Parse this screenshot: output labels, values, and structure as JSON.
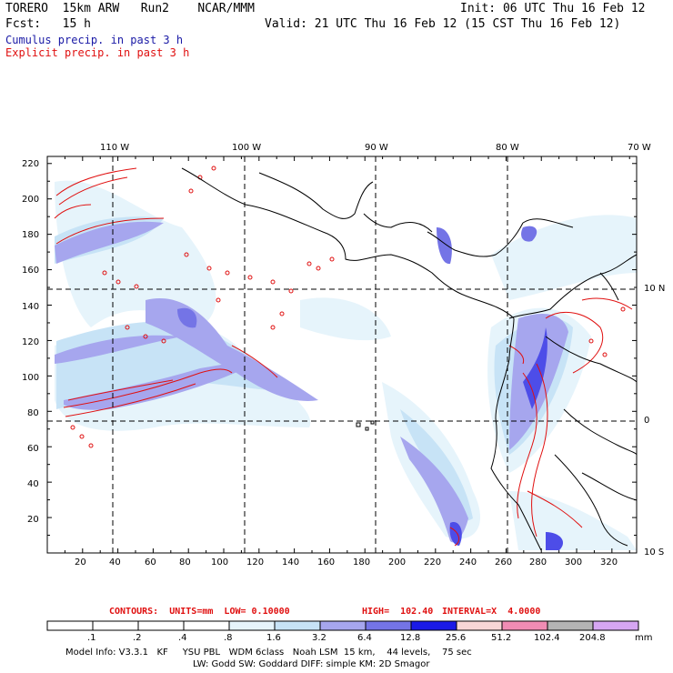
{
  "header": {
    "left1": "TORERO  15km ARW   Run2    NCAR/MMM",
    "left2": "Fcst:   15 h",
    "right1": "Init: 06 UTC Thu 16 Feb 12",
    "right2": "Valid: 21 UTC Thu 16 Feb 12 (15 CST Thu 16 Feb 12)",
    "legend_cumulus": "Cumulus precip. in past 3 h",
    "legend_explicit": "Explicit precip. in past 3 h"
  },
  "axes": {
    "top_lon_labels": [
      "110 W",
      "100 W",
      "90 W",
      "80 W",
      "70 W"
    ],
    "right_lat_labels": [
      "10 N",
      "0",
      "10 S"
    ],
    "left_y_labels": [
      "220",
      "200",
      "180",
      "160",
      "140",
      "120",
      "100",
      "80",
      "60",
      "40",
      "20"
    ],
    "bottom_x_labels": [
      "20",
      "40",
      "60",
      "80",
      "100",
      "120",
      "140",
      "160",
      "180",
      "200",
      "220",
      "240",
      "260",
      "280",
      "300",
      "320"
    ]
  },
  "contour_info": {
    "units": "CONTOURS:  UNITS=mm  LOW= 0.10000",
    "high": "HIGH=  102.40",
    "interval": "INTERVAL=X  4.0000"
  },
  "colorbar": {
    "colors": [
      "#ffffff",
      "#ffffff",
      "#ffffff",
      "#ffffff",
      "#e6f4fb",
      "#c7e3f6",
      "#a6a6ee",
      "#7474e6",
      "#4d4de8",
      "#1a1ae6",
      "#f7d6d6",
      "#f08cb4",
      "#b4b4b4",
      "#787878",
      "#d6a6f2"
    ],
    "labels": [
      ".1",
      ".2",
      ".4",
      ".8",
      "1.6",
      "3.2",
      "6.4",
      "12.8",
      "25.6",
      "51.2",
      "102.4",
      "204.8"
    ],
    "unit": "mm"
  },
  "model_info": {
    "line1": "Model Info: V3.3.1   KF     YSU PBL   WDM 6class   Noah LSM  15 km,    44 levels,    75 sec",
    "line2": "LW: Godd SW: Goddard DIFF: simple KM: 2D Smagor"
  },
  "chart_data": {
    "type": "heatmap",
    "domain_x_range": [
      0,
      330
    ],
    "domain_y_range": [
      0,
      225
    ],
    "meridians_deg_w": [
      110,
      100,
      90,
      80,
      70
    ],
    "parallels_deg": [
      10,
      0,
      -10
    ],
    "fields": [
      "Cumulus precip. in past 3 h",
      "Explicit precip. in past 3 h"
    ],
    "contour_low_mm": 0.1,
    "contour_high_mm": 102.4,
    "contour_interval_factor": 4.0
  }
}
